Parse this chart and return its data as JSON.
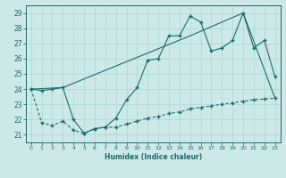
{
  "xlabel": "Humidex (Indice chaleur)",
  "ylabel": "",
  "xlim": [
    -0.5,
    23.5
  ],
  "ylim": [
    20.5,
    29.5
  ],
  "yticks": [
    21,
    22,
    23,
    24,
    25,
    26,
    27,
    28,
    29
  ],
  "xticks": [
    0,
    1,
    2,
    3,
    4,
    5,
    6,
    7,
    8,
    9,
    10,
    11,
    12,
    13,
    14,
    15,
    16,
    17,
    18,
    19,
    20,
    21,
    22,
    23
  ],
  "background_color": "#cde8e8",
  "grid_color": "#b0d8d8",
  "line_color": "#1a6b6b",
  "line1_x": [
    0,
    1,
    2,
    3,
    4,
    5,
    6,
    7,
    8,
    9,
    10,
    11,
    12,
    13,
    14,
    15,
    16,
    17,
    18,
    19,
    20,
    21,
    22,
    23
  ],
  "line1_y": [
    24.0,
    23.9,
    24.0,
    24.1,
    22.0,
    21.1,
    21.4,
    21.5,
    22.1,
    23.3,
    24.1,
    25.9,
    26.0,
    27.5,
    27.5,
    28.8,
    28.4,
    26.5,
    26.7,
    27.2,
    29.0,
    26.7,
    27.2,
    24.8
  ],
  "line2_x": [
    0,
    3,
    15,
    20,
    23
  ],
  "line2_y": [
    24.0,
    24.1,
    27.5,
    29.0,
    23.4
  ],
  "line3_x": [
    0,
    1,
    2,
    3,
    4,
    5,
    6,
    7,
    8,
    9,
    10,
    11,
    12,
    13,
    14,
    15,
    16,
    17,
    18,
    19,
    20,
    21,
    22,
    23
  ],
  "line3_y": [
    24.0,
    21.8,
    21.6,
    21.9,
    21.3,
    21.1,
    21.4,
    21.5,
    21.5,
    21.7,
    21.9,
    22.1,
    22.2,
    22.4,
    22.5,
    22.7,
    22.8,
    22.9,
    23.0,
    23.1,
    23.2,
    23.3,
    23.35,
    23.4
  ]
}
